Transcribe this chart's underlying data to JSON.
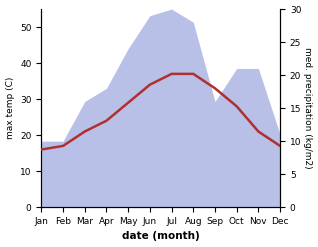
{
  "months": [
    "Jan",
    "Feb",
    "Mar",
    "Apr",
    "May",
    "Jun",
    "Jul",
    "Aug",
    "Sep",
    "Oct",
    "Nov",
    "Dec"
  ],
  "temp": [
    16,
    17,
    21,
    24,
    29,
    34,
    37,
    37,
    33,
    28,
    21,
    17
  ],
  "precip": [
    10,
    10,
    16,
    18,
    24,
    29,
    30,
    28,
    16,
    21,
    21,
    11
  ],
  "temp_color": "#b03030",
  "precip_fill_color": "#b8c0e8",
  "xlabel": "date (month)",
  "ylabel_left": "max temp (C)",
  "ylabel_right": "med. precipitation (kg/m2)",
  "ylim_left": [
    0,
    55
  ],
  "ylim_right": [
    0,
    30
  ],
  "yticks_left": [
    0,
    10,
    20,
    30,
    40,
    50
  ],
  "yticks_right": [
    0,
    5,
    10,
    15,
    20,
    25,
    30
  ],
  "bg_color": "#ffffff",
  "line_width": 1.8
}
